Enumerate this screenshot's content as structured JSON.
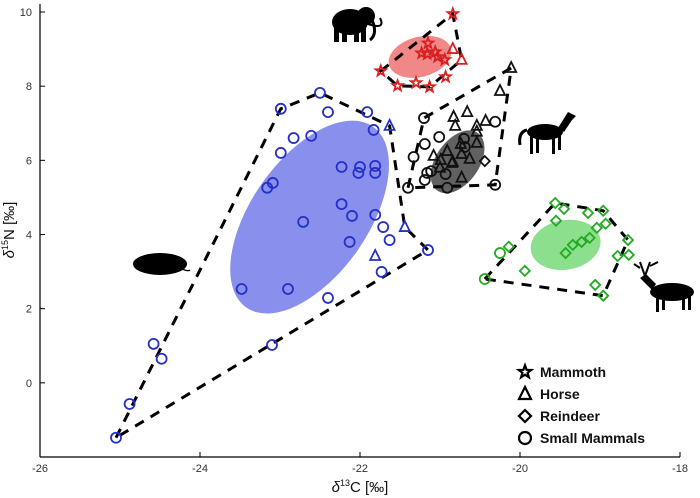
{
  "chart_data": {
    "type": "scatter",
    "title": "",
    "xlabel": "δ13C [‰]",
    "ylabel": "δ15N [‰]",
    "xlabel_parts": {
      "delta": "δ",
      "sup": "13",
      "rest": "C [‰]"
    },
    "ylabel_parts": {
      "delta": "δ",
      "sup": "15",
      "rest": "N [‰]"
    },
    "xlim": [
      -26,
      -18
    ],
    "ylim": [
      -2,
      10
    ],
    "xticks": [
      "-26",
      "-24",
      "-22",
      "-20",
      "-18"
    ],
    "xtick_values": [
      -26,
      -24,
      -22,
      -20,
      -18
    ],
    "yticks": [
      "0",
      "2",
      "4",
      "6",
      "8",
      "10"
    ],
    "ytick_values": [
      0,
      2,
      4,
      6,
      8,
      10
    ],
    "legend_position": "bottom-right",
    "legend": [
      {
        "label": "Mammoth",
        "marker": "star"
      },
      {
        "label": "Horse",
        "marker": "triangle"
      },
      {
        "label": "Reindeer",
        "marker": "diamond"
      },
      {
        "label": "Small Mammals",
        "marker": "circle"
      }
    ],
    "groups": [
      {
        "name": "small-mammals",
        "color": "#2430c8",
        "fill": "#7b83ea",
        "ellipse": {
          "cx": -22.63,
          "cy": 4.47,
          "rx": 1.38,
          "ry": 0.73,
          "angle": -55
        },
        "hull": [
          [
            -25.05,
            -1.48
          ],
          [
            -22.99,
            7.39
          ],
          [
            -22.5,
            7.82
          ],
          [
            -21.63,
            6.93
          ],
          [
            -21.44,
            4.2
          ],
          [
            -21.15,
            3.58
          ]
        ],
        "points": [
          {
            "m": "circle",
            "x": -22.5,
            "y": 7.82
          },
          {
            "m": "circle",
            "x": -22.99,
            "y": 7.39
          },
          {
            "m": "circle",
            "x": -22.4,
            "y": 7.3
          },
          {
            "m": "circle",
            "x": -21.91,
            "y": 7.3
          },
          {
            "m": "circle",
            "x": -22.83,
            "y": 6.6
          },
          {
            "m": "circle",
            "x": -22.61,
            "y": 6.66
          },
          {
            "m": "circle",
            "x": -21.83,
            "y": 6.82
          },
          {
            "m": "circle",
            "x": -22.99,
            "y": 6.2
          },
          {
            "m": "circle",
            "x": -23.16,
            "y": 5.26
          },
          {
            "m": "circle",
            "x": -23.09,
            "y": 5.39
          },
          {
            "m": "circle",
            "x": -22.23,
            "y": 5.82
          },
          {
            "m": "circle",
            "x": -22.0,
            "y": 5.82
          },
          {
            "m": "circle",
            "x": -22.02,
            "y": 5.66
          },
          {
            "m": "circle",
            "x": -21.81,
            "y": 5.85
          },
          {
            "m": "circle",
            "x": -21.81,
            "y": 5.66
          },
          {
            "m": "circle",
            "x": -22.23,
            "y": 4.82
          },
          {
            "m": "circle",
            "x": -22.1,
            "y": 4.5
          },
          {
            "m": "circle",
            "x": -21.81,
            "y": 4.53
          },
          {
            "m": "circle",
            "x": -22.71,
            "y": 4.34
          },
          {
            "m": "circle",
            "x": -21.71,
            "y": 4.2
          },
          {
            "m": "circle",
            "x": -21.63,
            "y": 3.85
          },
          {
            "m": "circle",
            "x": -22.13,
            "y": 3.8
          },
          {
            "m": "circle",
            "x": -21.73,
            "y": 2.99
          },
          {
            "m": "circle",
            "x": -21.15,
            "y": 3.58
          },
          {
            "m": "circle",
            "x": -23.48,
            "y": 2.53
          },
          {
            "m": "circle",
            "x": -22.9,
            "y": 2.53
          },
          {
            "m": "circle",
            "x": -22.4,
            "y": 2.29
          },
          {
            "m": "circle",
            "x": -23.1,
            "y": 1.02
          },
          {
            "m": "circle",
            "x": -24.58,
            "y": 1.05
          },
          {
            "m": "circle",
            "x": -24.48,
            "y": 0.65
          },
          {
            "m": "circle",
            "x": -24.88,
            "y": -0.57
          },
          {
            "m": "circle",
            "x": -25.05,
            "y": -1.48
          },
          {
            "m": "triangle",
            "x": -21.63,
            "y": 6.93
          },
          {
            "m": "triangle",
            "x": -21.44,
            "y": 4.2
          },
          {
            "m": "triangle",
            "x": -21.81,
            "y": 3.42
          }
        ]
      },
      {
        "name": "mammoth",
        "color": "#d82020",
        "fill": "#f07a7a",
        "ellipse": {
          "cx": -21.25,
          "cy": 8.79,
          "rx": 0.4,
          "ry": 0.25,
          "angle": -15
        },
        "hull": [
          [
            -21.74,
            8.41
          ],
          [
            -20.84,
            9.95
          ],
          [
            -20.73,
            8.71
          ],
          [
            -21.13,
            7.98
          ],
          [
            -21.53,
            8.01
          ]
        ],
        "points": [
          {
            "m": "star",
            "x": -20.84,
            "y": 9.95
          },
          {
            "m": "star",
            "x": -21.15,
            "y": 9.16
          },
          {
            "m": "star",
            "x": -21.23,
            "y": 8.89
          },
          {
            "m": "star",
            "x": -21.16,
            "y": 8.87
          },
          {
            "m": "star",
            "x": -21.06,
            "y": 8.92
          },
          {
            "m": "star",
            "x": -21.03,
            "y": 8.79
          },
          {
            "m": "star",
            "x": -20.94,
            "y": 8.71
          },
          {
            "m": "star",
            "x": -21.74,
            "y": 8.41
          },
          {
            "m": "star",
            "x": -21.53,
            "y": 8.01
          },
          {
            "m": "star",
            "x": -21.3,
            "y": 8.09
          },
          {
            "m": "star",
            "x": -21.13,
            "y": 7.98
          },
          {
            "m": "star",
            "x": -20.93,
            "y": 8.25
          },
          {
            "m": "triangle",
            "x": -20.84,
            "y": 9.0
          },
          {
            "m": "triangle",
            "x": -20.73,
            "y": 8.71
          }
        ]
      },
      {
        "name": "horse",
        "color": "#111111",
        "fill": "#505050",
        "ellipse": {
          "cx": -20.78,
          "cy": 5.96,
          "rx": 0.44,
          "ry": 0.27,
          "angle": -55
        },
        "hull": [
          [
            -21.4,
            5.26
          ],
          [
            -21.2,
            7.14
          ],
          [
            -20.11,
            8.49
          ],
          [
            -20.31,
            5.34
          ]
        ],
        "points": [
          {
            "m": "triangle",
            "x": -20.11,
            "y": 8.49
          },
          {
            "m": "triangle",
            "x": -20.25,
            "y": 7.87
          },
          {
            "m": "triangle",
            "x": -20.66,
            "y": 7.3
          },
          {
            "m": "triangle",
            "x": -20.83,
            "y": 7.17
          },
          {
            "m": "triangle",
            "x": -20.54,
            "y": 6.93
          },
          {
            "m": "triangle",
            "x": -20.43,
            "y": 7.06
          },
          {
            "m": "triangle",
            "x": -20.81,
            "y": 6.93
          },
          {
            "m": "triangle",
            "x": -20.54,
            "y": 6.77
          },
          {
            "m": "triangle",
            "x": -20.74,
            "y": 6.44
          },
          {
            "m": "triangle",
            "x": -20.91,
            "y": 6.25
          },
          {
            "m": "triangle",
            "x": -21.08,
            "y": 6.12
          },
          {
            "m": "triangle",
            "x": -20.99,
            "y": 6.01
          },
          {
            "m": "triangle",
            "x": -20.84,
            "y": 5.96
          },
          {
            "m": "triangle",
            "x": -20.73,
            "y": 6.17
          },
          {
            "m": "triangle",
            "x": -20.63,
            "y": 6.04
          },
          {
            "m": "triangle",
            "x": -21.0,
            "y": 5.8
          },
          {
            "m": "triangle",
            "x": -20.85,
            "y": 5.93
          },
          {
            "m": "triangle",
            "x": -20.73,
            "y": 5.53
          },
          {
            "m": "triangle",
            "x": -20.54,
            "y": 6.47
          },
          {
            "m": "circle",
            "x": -21.2,
            "y": 7.14
          },
          {
            "m": "circle",
            "x": -21.01,
            "y": 6.63
          },
          {
            "m": "circle",
            "x": -20.31,
            "y": 7.04
          },
          {
            "m": "circle",
            "x": -21.19,
            "y": 6.44
          },
          {
            "m": "circle",
            "x": -20.7,
            "y": 6.58
          },
          {
            "m": "circle",
            "x": -21.33,
            "y": 6.09
          },
          {
            "m": "circle",
            "x": -21.16,
            "y": 5.66
          },
          {
            "m": "circle",
            "x": -21.11,
            "y": 5.71
          },
          {
            "m": "circle",
            "x": -20.93,
            "y": 5.63
          },
          {
            "m": "circle",
            "x": -21.19,
            "y": 5.47
          },
          {
            "m": "circle",
            "x": -21.4,
            "y": 5.26
          },
          {
            "m": "circle",
            "x": -20.91,
            "y": 5.26
          },
          {
            "m": "circle",
            "x": -20.31,
            "y": 5.34
          },
          {
            "m": "circle",
            "x": -20.69,
            "y": 6.36
          },
          {
            "m": "diamond",
            "x": -20.44,
            "y": 5.98
          }
        ]
      },
      {
        "name": "reindeer",
        "color": "#22aa22",
        "fill": "#80dc80",
        "ellipse": {
          "cx": -19.43,
          "cy": 3.72,
          "rx": 0.44,
          "ry": 0.31,
          "angle": -10
        },
        "hull": [
          [
            -20.44,
            2.8
          ],
          [
            -19.56,
            4.85
          ],
          [
            -18.96,
            4.64
          ],
          [
            -18.65,
            3.85
          ],
          [
            -18.96,
            2.35
          ]
        ],
        "points": [
          {
            "m": "diamond",
            "x": -19.56,
            "y": 4.85
          },
          {
            "m": "diamond",
            "x": -19.45,
            "y": 4.69
          },
          {
            "m": "diamond",
            "x": -19.15,
            "y": 4.58
          },
          {
            "m": "diamond",
            "x": -18.96,
            "y": 4.64
          },
          {
            "m": "diamond",
            "x": -19.55,
            "y": 4.37
          },
          {
            "m": "diamond",
            "x": -18.93,
            "y": 4.29
          },
          {
            "m": "diamond",
            "x": -19.04,
            "y": 4.18
          },
          {
            "m": "diamond",
            "x": -19.13,
            "y": 3.91
          },
          {
            "m": "diamond",
            "x": -19.23,
            "y": 3.8
          },
          {
            "m": "diamond",
            "x": -19.34,
            "y": 3.72
          },
          {
            "m": "diamond",
            "x": -19.43,
            "y": 3.5
          },
          {
            "m": "diamond",
            "x": -18.65,
            "y": 3.85
          },
          {
            "m": "diamond",
            "x": -18.78,
            "y": 3.42
          },
          {
            "m": "diamond",
            "x": -18.64,
            "y": 3.45
          },
          {
            "m": "diamond",
            "x": -20.14,
            "y": 3.67
          },
          {
            "m": "diamond",
            "x": -19.94,
            "y": 3.02
          },
          {
            "m": "diamond",
            "x": -19.06,
            "y": 2.64
          },
          {
            "m": "diamond",
            "x": -18.96,
            "y": 2.35
          },
          {
            "m": "circle",
            "x": -20.25,
            "y": 3.5
          },
          {
            "m": "circle",
            "x": -20.44,
            "y": 2.8
          }
        ]
      }
    ]
  }
}
